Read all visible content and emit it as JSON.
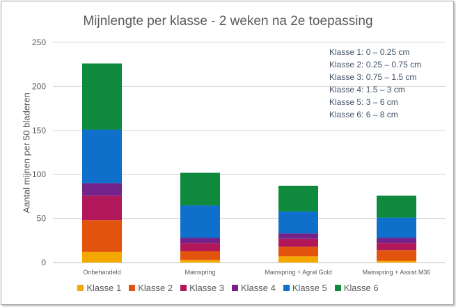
{
  "chart_data": {
    "type": "bar",
    "stacked": true,
    "title": "Mijnlengte per klasse - 2 weken na 2e toepassing",
    "xlabel": "",
    "ylabel": "Aantal mijnen per 50 bladeren",
    "ylim": [
      0,
      250
    ],
    "yticks": [
      "0",
      "50",
      "100",
      "150",
      "200",
      "250"
    ],
    "grid": true,
    "legend_position": "bottom",
    "categories": [
      "Onbehandeld",
      "Mainspring",
      "Mainspring + Agral Gold",
      "Mainspring + Assist M36"
    ],
    "series": [
      {
        "name": "Klasse 1",
        "color": "#f5a800",
        "values": [
          12,
          3,
          7,
          2
        ]
      },
      {
        "name": "Klasse 2",
        "color": "#e2540e",
        "values": [
          36,
          10,
          11,
          12
        ]
      },
      {
        "name": "Klasse 3",
        "color": "#b0185a",
        "values": [
          28,
          9,
          9,
          8
        ]
      },
      {
        "name": "Klasse 4",
        "color": "#74238b",
        "values": [
          14,
          6,
          6,
          6
        ]
      },
      {
        "name": "Klasse 5",
        "color": "#0f70cc",
        "values": [
          61,
          37,
          25,
          23
        ]
      },
      {
        "name": "Klasse 6",
        "color": "#0f8a3c",
        "values": [
          75,
          37,
          29,
          25
        ]
      }
    ],
    "annotation_lines": [
      "Klasse 1: 0 – 0.25 cm",
      "Klasse 2: 0.25 – 0.75 cm",
      "Klasse 3: 0.75 – 1.5 cm",
      "Klasse 4: 1.5 – 3 cm",
      "Klasse 5: 3 – 6 cm",
      "Klasse 6: 6 – 8 cm"
    ]
  }
}
